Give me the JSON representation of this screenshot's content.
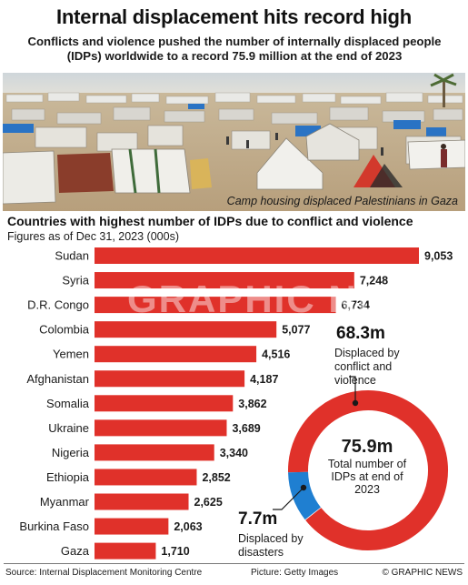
{
  "header": {
    "title": "Internal displacement hits record high",
    "subtitle": "Conflicts and violence pushed the number of internally displaced people (IDPs) worldwide to a record 75.9 million at the end of 2023"
  },
  "photo": {
    "caption": "Camp housing displaced Palestinians in Gaza"
  },
  "watermark": "GRAPHIC NEWS",
  "chart_data": [
    {
      "type": "bar",
      "title": "Countries with highest number of IDPs due to conflict and violence",
      "subtitle": "Figures as of Dec 31, 2023 (000s)",
      "categories": [
        "Sudan",
        "Syria",
        "D.R. Congo",
        "Colombia",
        "Yemen",
        "Afghanistan",
        "Somalia",
        "Ukraine",
        "Nigeria",
        "Ethiopia",
        "Myanmar",
        "Burkina Faso",
        "Gaza"
      ],
      "values": [
        9053,
        7248,
        6734,
        5077,
        4516,
        4187,
        3862,
        3689,
        3340,
        2852,
        2625,
        2063,
        1710
      ],
      "value_labels": [
        "9,053",
        "7,248",
        "6,734",
        "5,077",
        "4,516",
        "4,187",
        "3,862",
        "3,689",
        "3,340",
        "2,852",
        "2,625",
        "2,063",
        "1,710"
      ],
      "orientation": "horizontal",
      "xlim": [
        0,
        9053
      ],
      "grid": false,
      "color": "#e0312a"
    },
    {
      "type": "pie",
      "style": "donut",
      "center_value": "75.9m",
      "center_label": "Total number of IDPs at end of 2023",
      "slices": [
        {
          "label": "Displaced by conflict and violence",
          "value": 68.3,
          "value_label": "68.3m",
          "color": "#e0312a"
        },
        {
          "label": "Displaced by disasters",
          "value": 7.7,
          "value_label": "7.7m",
          "color": "#1f7fd1"
        }
      ]
    }
  ],
  "footer": {
    "source": "Source: Internal Displacement Monitoring Centre",
    "picture": "Picture: Getty Images",
    "credit": "© GRAPHIC NEWS"
  }
}
